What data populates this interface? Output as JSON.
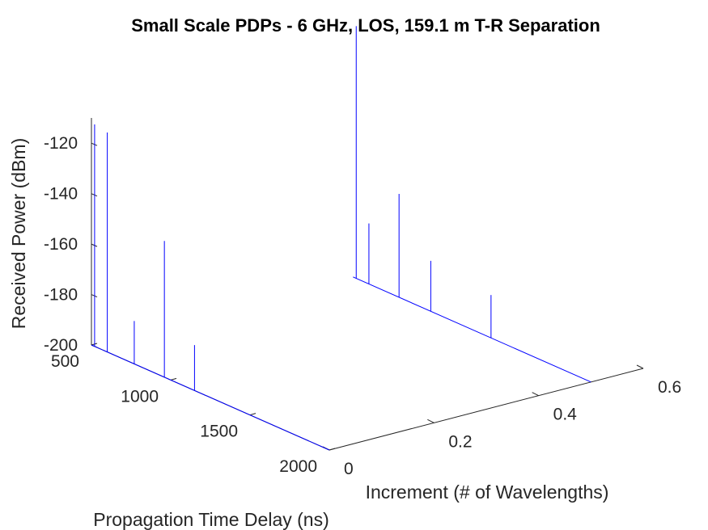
{
  "chart_data": {
    "type": "line",
    "subtype": "3d-stem",
    "title": "Small Scale PDPs - 6 GHz, LOS, 159.1 m T-R Separation",
    "xlabel": "Propagation Time Delay (ns)",
    "ylabel": "Increment (# of Wavelengths)",
    "zlabel": "Received Power (dBm)",
    "x_ticks": [
      "500",
      "1000",
      "1500",
      "2000"
    ],
    "y_ticks": [
      "0",
      "0.2",
      "0.4",
      "0.6"
    ],
    "z_ticks": [
      "-120",
      "-140",
      "-160",
      "-180",
      "-200"
    ],
    "xlim": [
      500,
      2000
    ],
    "ylim": [
      0,
      0.6
    ],
    "zlim": [
      -200,
      -110
    ],
    "grid": false,
    "line_color": "#0000ff",
    "series": [
      {
        "increment": 0,
        "delay_start": 500,
        "delay_end": 2000,
        "floor": -200,
        "peaks": [
          {
            "x": 520,
            "z": -112
          },
          {
            "x": 600,
            "z": -113
          },
          {
            "x": 770,
            "z": -183
          },
          {
            "x": 960,
            "z": -146
          },
          {
            "x": 1150,
            "z": -182
          },
          {
            "x": 1500,
            "z": -200
          }
        ]
      },
      {
        "increment": 0.5,
        "delay_start": 500,
        "delay_end": 2000,
        "floor": -200,
        "peaks": [
          {
            "x": 520,
            "z": -100
          },
          {
            "x": 600,
            "z": -176
          },
          {
            "x": 790,
            "z": -159
          },
          {
            "x": 990,
            "z": -180
          },
          {
            "x": 1370,
            "z": -183
          }
        ]
      }
    ]
  }
}
